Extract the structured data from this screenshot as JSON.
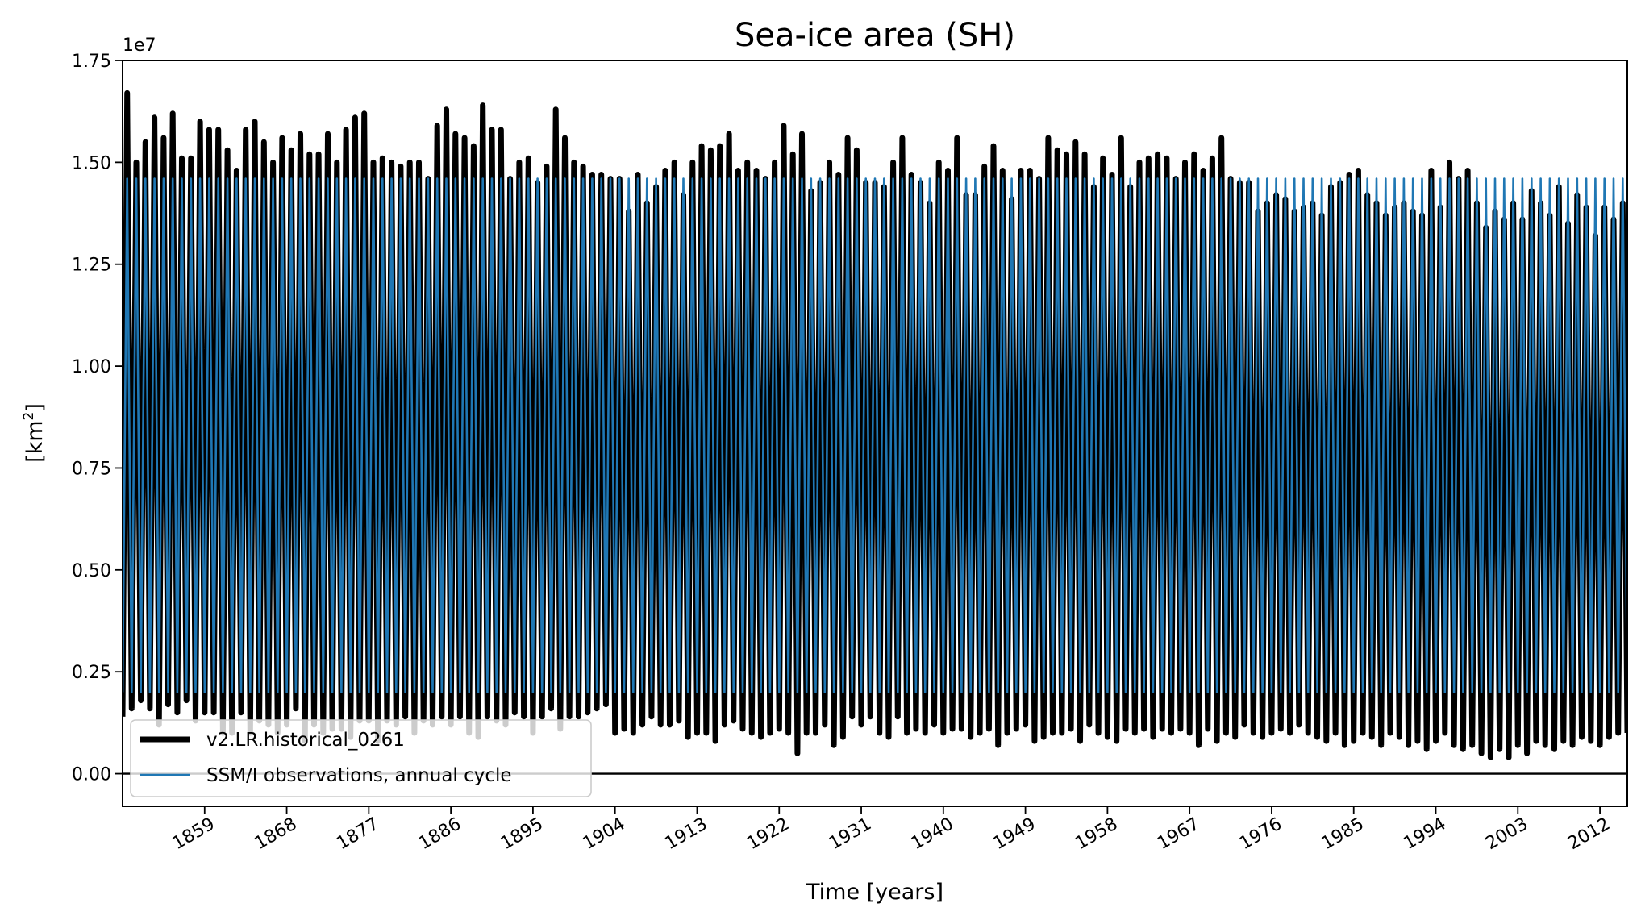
{
  "chart_data": {
    "type": "line",
    "title": "Sea-ice area (SH)",
    "xlabel": "Time [years]",
    "ylabel_main": "[km",
    "ylabel_sup": "2",
    "ylabel_close": "]",
    "y_offset_label": "1e7",
    "xlim": [
      1850,
      2015
    ],
    "ylim": [
      -0.08,
      1.75
    ],
    "y_scale_factor": 10000000,
    "y_ticks": [
      0.0,
      0.25,
      0.5,
      0.75,
      1.0,
      1.25,
      1.5,
      1.75
    ],
    "y_tick_labels": [
      "0.00",
      "0.25",
      "0.50",
      "0.75",
      "1.00",
      "1.25",
      "1.50",
      "1.75"
    ],
    "x_ticks": [
      1859,
      1868,
      1877,
      1886,
      1895,
      1904,
      1913,
      1922,
      1931,
      1940,
      1949,
      1958,
      1967,
      1976,
      1985,
      1994,
      2003,
      2012
    ],
    "x_tick_labels": [
      "1859",
      "1868",
      "1877",
      "1886",
      "1895",
      "1904",
      "1913",
      "1922",
      "1931",
      "1940",
      "1949",
      "1958",
      "1967",
      "1976",
      "1985",
      "1994",
      "2003",
      "2012"
    ],
    "zero_line": 0.0,
    "legend_position": "lower left",
    "series": [
      {
        "name": "v2.LR.historical_0261",
        "color": "#000000",
        "style": "thick",
        "annual_max": [
          1.67,
          1.5,
          1.55,
          1.61,
          1.56,
          1.62,
          1.51,
          1.51,
          1.6,
          1.58,
          1.58,
          1.53,
          1.48,
          1.58,
          1.6,
          1.55,
          1.5,
          1.56,
          1.53,
          1.57,
          1.52,
          1.52,
          1.57,
          1.5,
          1.58,
          1.61,
          1.62,
          1.5,
          1.51,
          1.5,
          1.49,
          1.5,
          1.5,
          1.46,
          1.59,
          1.63,
          1.57,
          1.56,
          1.54,
          1.64,
          1.58,
          1.58,
          1.46,
          1.5,
          1.51,
          1.45,
          1.49,
          1.63,
          1.56,
          1.5,
          1.49,
          1.47,
          1.47,
          1.46,
          1.46,
          1.38,
          1.47,
          1.4,
          1.44,
          1.48,
          1.5,
          1.42,
          1.5,
          1.54,
          1.53,
          1.54,
          1.57,
          1.48,
          1.5,
          1.48,
          1.46,
          1.5,
          1.59,
          1.52,
          1.57,
          1.43,
          1.45,
          1.5,
          1.47,
          1.56,
          1.53,
          1.45,
          1.45,
          1.44,
          1.5,
          1.56,
          1.47,
          1.45,
          1.4,
          1.5,
          1.48,
          1.56,
          1.42,
          1.42,
          1.49,
          1.54,
          1.48,
          1.41,
          1.48,
          1.48,
          1.46,
          1.56,
          1.53,
          1.52,
          1.55,
          1.52,
          1.44,
          1.51,
          1.47,
          1.56,
          1.44,
          1.5,
          1.51,
          1.52,
          1.51,
          1.46,
          1.5,
          1.52,
          1.48,
          1.51,
          1.56,
          1.46,
          1.45,
          1.45,
          1.38,
          1.4,
          1.42,
          1.41,
          1.38,
          1.39,
          1.4,
          1.37,
          1.44,
          1.45,
          1.47,
          1.48,
          1.42,
          1.4,
          1.37,
          1.39,
          1.4,
          1.38,
          1.37,
          1.48,
          1.39,
          1.5,
          1.46,
          1.48,
          1.4,
          1.34,
          1.38,
          1.36,
          1.4,
          1.36,
          1.43,
          1.4,
          1.37,
          1.44,
          1.35,
          1.42,
          1.39,
          1.32,
          1.39,
          1.36,
          1.4
        ],
        "annual_min": [
          0.14,
          0.16,
          0.18,
          0.16,
          0.12,
          0.17,
          0.15,
          0.18,
          0.13,
          0.15,
          0.15,
          0.1,
          0.1,
          0.15,
          0.1,
          0.13,
          0.12,
          0.1,
          0.12,
          0.16,
          0.08,
          0.12,
          0.1,
          0.11,
          0.11,
          0.09,
          0.13,
          0.13,
          0.08,
          0.13,
          0.12,
          0.14,
          0.1,
          0.13,
          0.12,
          0.14,
          0.12,
          0.14,
          0.1,
          0.09,
          0.14,
          0.13,
          0.12,
          0.15,
          0.14,
          0.1,
          0.14,
          0.16,
          0.11,
          0.14,
          0.14,
          0.15,
          0.16,
          0.17,
          0.1,
          0.11,
          0.1,
          0.12,
          0.14,
          0.12,
          0.12,
          0.13,
          0.09,
          0.1,
          0.1,
          0.08,
          0.12,
          0.13,
          0.11,
          0.1,
          0.09,
          0.1,
          0.11,
          0.1,
          0.05,
          0.1,
          0.1,
          0.12,
          0.07,
          0.09,
          0.14,
          0.12,
          0.14,
          0.1,
          0.09,
          0.14,
          0.1,
          0.11,
          0.1,
          0.12,
          0.1,
          0.11,
          0.11,
          0.09,
          0.1,
          0.11,
          0.07,
          0.1,
          0.11,
          0.12,
          0.08,
          0.09,
          0.1,
          0.1,
          0.11,
          0.08,
          0.12,
          0.1,
          0.09,
          0.08,
          0.11,
          0.1,
          0.11,
          0.09,
          0.11,
          0.1,
          0.11,
          0.1,
          0.07,
          0.11,
          0.08,
          0.1,
          0.09,
          0.12,
          0.1,
          0.09,
          0.1,
          0.11,
          0.1,
          0.12,
          0.1,
          0.09,
          0.08,
          0.1,
          0.07,
          0.08,
          0.1,
          0.09,
          0.07,
          0.1,
          0.09,
          0.07,
          0.08,
          0.06,
          0.08,
          0.1,
          0.07,
          0.06,
          0.07,
          0.05,
          0.04,
          0.06,
          0.04,
          0.07,
          0.05,
          0.08,
          0.07,
          0.06,
          0.08,
          0.07,
          0.09,
          0.08,
          0.07,
          0.09,
          0.1
        ]
      },
      {
        "name": "SSM/I observations, annual cycle",
        "color": "#1f77b4",
        "style": "thin",
        "annual_max": 1.46,
        "annual_min": 0.2
      }
    ]
  }
}
